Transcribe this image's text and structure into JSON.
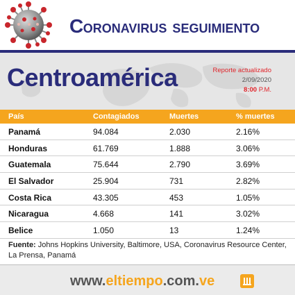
{
  "header": {
    "title_initial_1": "C",
    "title_rest_1": "ORONAVIRUS",
    "title_initial_2": "S",
    "title_rest_2": "EGUIMIENTO"
  },
  "region": {
    "title": "Centroamérica"
  },
  "report": {
    "line1": "Reporte actualizado",
    "date": "2/09/2020",
    "time": "8:00",
    "period": "P.M."
  },
  "table": {
    "headers": [
      "País",
      "Contagiados",
      "Muertes",
      "% muertes"
    ],
    "rows": [
      [
        "Panamá",
        "94.084",
        "2.030",
        "2.16%"
      ],
      [
        "Honduras",
        "61.769",
        "1.888",
        "3.06%"
      ],
      [
        "Guatemala",
        "75.644",
        "2.790",
        "3.69%"
      ],
      [
        "El Salvador",
        "25.904",
        "731",
        "2.82%"
      ],
      [
        "Costa Rica",
        "43.305",
        "453",
        "1.05%"
      ],
      [
        "Nicaragua",
        "4.668",
        "141",
        "3.02%"
      ],
      [
        "Belice",
        "1.050",
        "13",
        "1.24%"
      ]
    ]
  },
  "source": {
    "label": "Fuente:",
    "text": "Johns Hopkins University, Baltimore, USA, Coronavirus Resource Center, La Prensa, Panamá"
  },
  "footer": {
    "url_1": "www.",
    "url_2": "eltiempo",
    "url_3": ".com.",
    "url_4": "ve"
  },
  "colors": {
    "navy": "#2a2c7a",
    "orange": "#f5a51e",
    "red": "#e0242a"
  },
  "icons": {
    "header": "coronavirus-icon",
    "footer": "eltiempo-logo-icon"
  }
}
